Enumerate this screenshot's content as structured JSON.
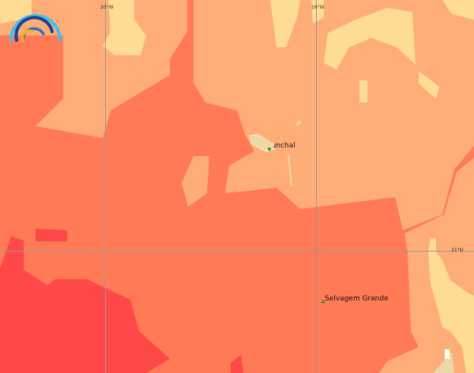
{
  "map": {
    "colors": {
      "lightest": "#FEDC94",
      "light": "#FFAD77",
      "medium": "#FF7A55",
      "strong": "#FF4848",
      "land": "#EDD9A8",
      "gridline": "#999999",
      "place_dot": "#2a9a2a"
    },
    "grid_labels": {
      "lon_20w": "20°W",
      "lon_16w": "16°W",
      "lat_31n": "31°N"
    },
    "places": [
      {
        "name": "Funchal"
      },
      {
        "name": "Selvagem Grande"
      }
    ],
    "logo_icon": "rainbow-arcs-logo"
  }
}
